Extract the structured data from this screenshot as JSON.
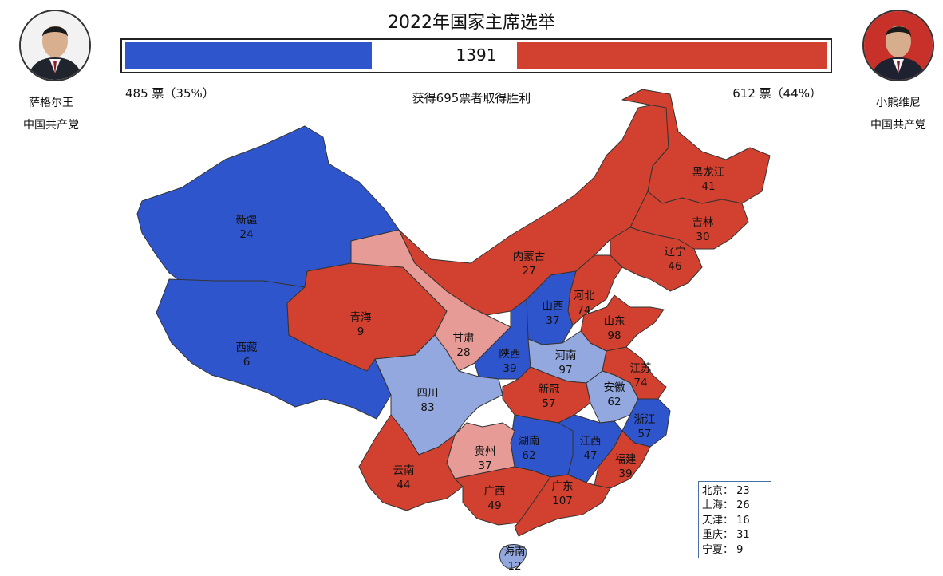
{
  "title": "2022年国家主席选举",
  "colors": {
    "blue": "#2f55cc",
    "light_blue": "#93a8de",
    "red": "#d2412f",
    "light_red": "#e69b96",
    "border": "#222222"
  },
  "tally": {
    "total": "1391",
    "left_votes": "485 票（35%）",
    "right_votes": "612 票（44%）",
    "left_fraction": 0.35,
    "right_fraction": 0.44,
    "win_note": "获得695票者取得胜利"
  },
  "candidates": {
    "left": {
      "name": "萨格尔王",
      "party": "中国共产党"
    },
    "right": {
      "name": "小熊维尼",
      "party": "中国共产党"
    }
  },
  "regions": [
    {
      "name": "新疆",
      "votes": "24",
      "color": "blue"
    },
    {
      "name": "西藏",
      "votes": "6",
      "color": "blue"
    },
    {
      "name": "青海",
      "votes": "9",
      "color": "red"
    },
    {
      "name": "甘肃",
      "votes": "28",
      "color": "light_red"
    },
    {
      "name": "内蒙古",
      "votes": "27",
      "color": "red"
    },
    {
      "name": "黑龙江",
      "votes": "41",
      "color": "red"
    },
    {
      "name": "吉林",
      "votes": "30",
      "color": "red"
    },
    {
      "name": "辽宁",
      "votes": "46",
      "color": "red"
    },
    {
      "name": "河北",
      "votes": "74",
      "color": "red"
    },
    {
      "name": "山西",
      "votes": "37",
      "color": "blue"
    },
    {
      "name": "山东",
      "votes": "98",
      "color": "red"
    },
    {
      "name": "陕西",
      "votes": "39",
      "color": "blue"
    },
    {
      "name": "河南",
      "votes": "97",
      "color": "light_blue"
    },
    {
      "name": "江苏",
      "votes": "74",
      "color": "red"
    },
    {
      "name": "四川",
      "votes": "83",
      "color": "light_blue"
    },
    {
      "name": "新冠",
      "votes": "57",
      "color": "red"
    },
    {
      "name": "安徽",
      "votes": "62",
      "color": "light_blue"
    },
    {
      "name": "浙江",
      "votes": "57",
      "color": "blue"
    },
    {
      "name": "湖南",
      "votes": "62",
      "color": "blue"
    },
    {
      "name": "江西",
      "votes": "47",
      "color": "blue"
    },
    {
      "name": "贵州",
      "votes": "37",
      "color": "light_red"
    },
    {
      "name": "福建",
      "votes": "39",
      "color": "red"
    },
    {
      "name": "云南",
      "votes": "44",
      "color": "red"
    },
    {
      "name": "广西",
      "votes": "49",
      "color": "red"
    },
    {
      "name": "广东",
      "votes": "107",
      "color": "red"
    },
    {
      "name": "海南",
      "votes": "12",
      "color": "light_blue"
    }
  ],
  "legend": [
    {
      "label": "北京：",
      "value": "23"
    },
    {
      "label": "上海：",
      "value": "26"
    },
    {
      "label": "天津：",
      "value": "16"
    },
    {
      "label": "重庆：",
      "value": "31"
    },
    {
      "label": "宁夏：",
      "value": "9"
    }
  ]
}
